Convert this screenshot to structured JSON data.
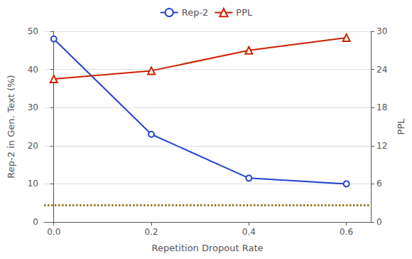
{
  "chart_data": {
    "type": "line",
    "xlabel": "Repetition Dropout Rate",
    "ylabel": "Rep-2 in Gen. Text (%)",
    "y2label": "PPL",
    "x": [
      0.0,
      0.2,
      0.4,
      0.6
    ],
    "series": [
      {
        "name": "Rep-2",
        "color": "#2244cc",
        "values": [
          48.0,
          23.0,
          11.5,
          10.0
        ],
        "marker": "circle",
        "line_style": "solid"
      },
      {
        "name": "PPL",
        "color": "#cc2200",
        "values": [
          22.5,
          23.8,
          27.0,
          29.0
        ],
        "marker": "triangle",
        "line_style": "solid",
        "axis": "y2"
      }
    ],
    "hlines": [
      {
        "value": 4.5,
        "color": "#806600",
        "line_style": "dotted"
      }
    ],
    "xlim": [
      -0.02,
      0.65
    ],
    "xticks": [
      {
        "value": 0.0,
        "label": "0.0"
      },
      0.2,
      0.4,
      0.6
    ],
    "ylim": [
      0,
      50
    ],
    "yticks": [
      0,
      10,
      20,
      30,
      40,
      50
    ],
    "y2lim": [
      0,
      30
    ],
    "y2ticks": [
      0,
      6,
      12,
      18,
      24,
      30
    ],
    "grid": true,
    "legend": "top"
  }
}
